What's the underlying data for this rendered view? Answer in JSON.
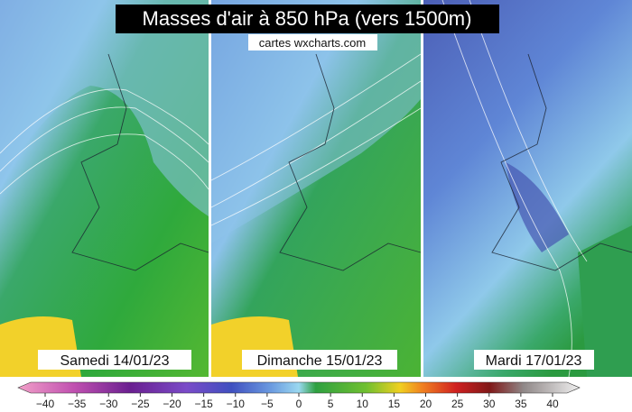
{
  "header": {
    "title": "Masses d'air à 850 hPa (vers 1500m)",
    "source": "cartes wxcharts.com"
  },
  "panels": [
    {
      "label": "Samedi 14/01/23"
    },
    {
      "label": "Dimanche 15/01/23"
    },
    {
      "label": "Mardi 17/01/23"
    }
  ],
  "colorbar": {
    "ticks": [
      "−40",
      "−35",
      "−30",
      "−25",
      "−20",
      "−15",
      "−10",
      "−5",
      "0",
      "5",
      "10",
      "15",
      "20",
      "25",
      "30",
      "35",
      "40"
    ]
  }
}
